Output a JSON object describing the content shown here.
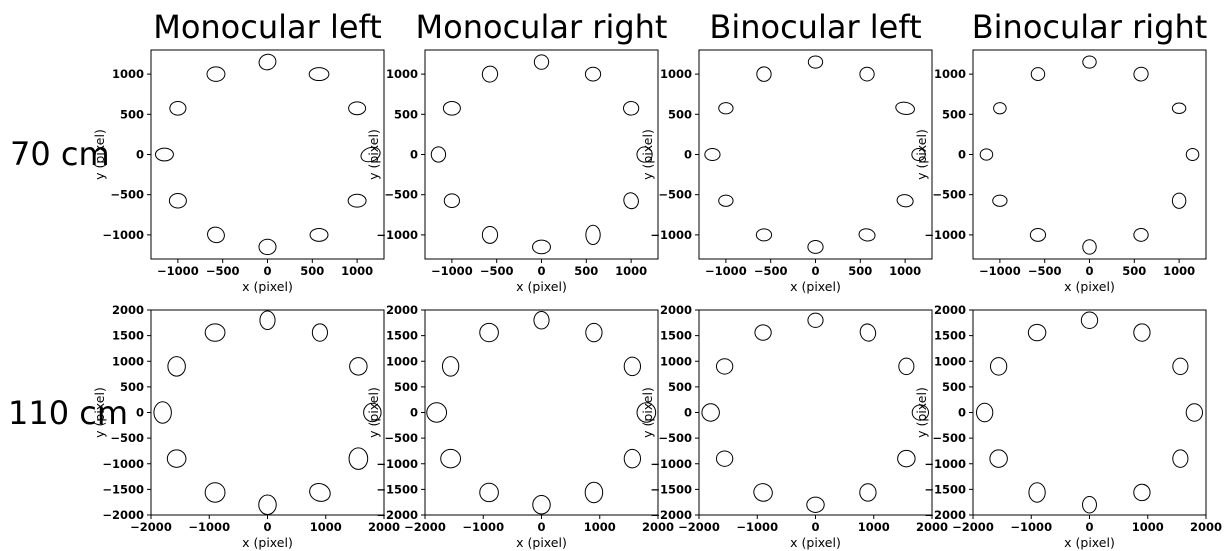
{
  "figure": {
    "column_titles": [
      "Monocular left",
      "Monocular right",
      "Binocular left",
      "Binocular right"
    ],
    "row_labels": [
      "70 cm",
      "110 cm"
    ]
  },
  "chart_data": [
    {
      "type": "scatter",
      "row": 0,
      "col": 0,
      "xlabel": "x (pixel)",
      "ylabel": "y (pixel)",
      "xlim": [
        -1300,
        1300
      ],
      "ylim": [
        -1300,
        1300
      ],
      "xticks": [
        -1000,
        -500,
        0,
        500,
        1000
      ],
      "yticks": [
        -1000,
        -500,
        0,
        500,
        1000
      ],
      "tick_labels_x": [
        "−1000",
        "−500",
        "0",
        "500",
        "1000"
      ],
      "tick_labels_y": [
        "−1000",
        "−500",
        "0",
        "500",
        "1000"
      ],
      "ellipses": [
        {
          "cx": 0,
          "cy": 1150,
          "rx": 95,
          "ry": 95,
          "angle": -20
        },
        {
          "cx": 575,
          "cy": 1000,
          "rx": 110,
          "ry": 80,
          "angle": 0
        },
        {
          "cx": 1000,
          "cy": 575,
          "rx": 95,
          "ry": 80,
          "angle": 0
        },
        {
          "cx": 1150,
          "cy": 0,
          "rx": 110,
          "ry": 85,
          "angle": -20
        },
        {
          "cx": 1000,
          "cy": -575,
          "rx": 100,
          "ry": 80,
          "angle": 0
        },
        {
          "cx": 575,
          "cy": -1000,
          "rx": 100,
          "ry": 80,
          "angle": 0
        },
        {
          "cx": 0,
          "cy": -1150,
          "rx": 95,
          "ry": 95,
          "angle": 0
        },
        {
          "cx": -575,
          "cy": -1000,
          "rx": 95,
          "ry": 95,
          "angle": 20
        },
        {
          "cx": -1000,
          "cy": -575,
          "rx": 95,
          "ry": 90,
          "angle": 0
        },
        {
          "cx": -1150,
          "cy": 0,
          "rx": 100,
          "ry": 80,
          "angle": 0
        },
        {
          "cx": -1000,
          "cy": 575,
          "rx": 90,
          "ry": 85,
          "angle": 0
        },
        {
          "cx": -575,
          "cy": 1000,
          "rx": 100,
          "ry": 90,
          "angle": 0
        }
      ]
    },
    {
      "type": "scatter",
      "row": 0,
      "col": 1,
      "xlabel": "x (pixel)",
      "ylabel": "y (pixel)",
      "xlim": [
        -1300,
        1300
      ],
      "ylim": [
        -1300,
        1300
      ],
      "xticks": [
        -1000,
        -500,
        0,
        500,
        1000
      ],
      "yticks": [
        -1000,
        -500,
        0,
        500,
        1000
      ],
      "tick_labels_x": [
        "−1000",
        "−500",
        "0",
        "500",
        "1000"
      ],
      "tick_labels_y": [
        "−1000",
        "−500",
        "0",
        "500",
        "1000"
      ],
      "ellipses": [
        {
          "cx": 0,
          "cy": 1150,
          "rx": 80,
          "ry": 90,
          "angle": 0
        },
        {
          "cx": 575,
          "cy": 1000,
          "rx": 85,
          "ry": 85,
          "angle": 0
        },
        {
          "cx": 1000,
          "cy": 575,
          "rx": 85,
          "ry": 85,
          "angle": 0
        },
        {
          "cx": 1150,
          "cy": 0,
          "rx": 85,
          "ry": 95,
          "angle": 0
        },
        {
          "cx": 1000,
          "cy": -575,
          "rx": 80,
          "ry": 100,
          "angle": -20
        },
        {
          "cx": 575,
          "cy": -1000,
          "rx": 80,
          "ry": 120,
          "angle": 0
        },
        {
          "cx": 0,
          "cy": -1150,
          "rx": 100,
          "ry": 85,
          "angle": 0
        },
        {
          "cx": -575,
          "cy": -1000,
          "rx": 85,
          "ry": 105,
          "angle": 0
        },
        {
          "cx": -1000,
          "cy": -575,
          "rx": 85,
          "ry": 85,
          "angle": 0
        },
        {
          "cx": -1150,
          "cy": 0,
          "rx": 80,
          "ry": 95,
          "angle": 0
        },
        {
          "cx": -1000,
          "cy": 575,
          "rx": 95,
          "ry": 85,
          "angle": 0
        },
        {
          "cx": -575,
          "cy": 1000,
          "rx": 85,
          "ry": 100,
          "angle": 10
        }
      ]
    },
    {
      "type": "scatter",
      "row": 0,
      "col": 2,
      "xlabel": "x (pixel)",
      "ylabel": "y (pixel)",
      "xlim": [
        -1300,
        1300
      ],
      "ylim": [
        -1300,
        1300
      ],
      "xticks": [
        -1000,
        -500,
        0,
        500,
        1000
      ],
      "yticks": [
        -1000,
        -500,
        0,
        500,
        1000
      ],
      "tick_labels_x": [
        "−1000",
        "−500",
        "0",
        "500",
        "1000"
      ],
      "tick_labels_y": [
        "−1000",
        "−500",
        "0",
        "500",
        "1000"
      ],
      "ellipses": [
        {
          "cx": 0,
          "cy": 1150,
          "rx": 80,
          "ry": 75,
          "angle": 0
        },
        {
          "cx": 575,
          "cy": 1000,
          "rx": 80,
          "ry": 85,
          "angle": 0
        },
        {
          "cx": 1000,
          "cy": 575,
          "rx": 105,
          "ry": 75,
          "angle": 10
        },
        {
          "cx": 1150,
          "cy": 0,
          "rx": 75,
          "ry": 75,
          "angle": 0
        },
        {
          "cx": 1000,
          "cy": -575,
          "rx": 90,
          "ry": 75,
          "angle": 10
        },
        {
          "cx": 575,
          "cy": -1000,
          "rx": 90,
          "ry": 75,
          "angle": 10
        },
        {
          "cx": 0,
          "cy": -1150,
          "rx": 85,
          "ry": 80,
          "angle": 0
        },
        {
          "cx": -575,
          "cy": -1000,
          "rx": 85,
          "ry": 75,
          "angle": 0
        },
        {
          "cx": -1000,
          "cy": -575,
          "rx": 80,
          "ry": 70,
          "angle": 0
        },
        {
          "cx": -1150,
          "cy": 0,
          "rx": 85,
          "ry": 75,
          "angle": 0
        },
        {
          "cx": -1000,
          "cy": 575,
          "rx": 80,
          "ry": 70,
          "angle": 0
        },
        {
          "cx": -575,
          "cy": 1000,
          "rx": 80,
          "ry": 90,
          "angle": 0
        }
      ]
    },
    {
      "type": "scatter",
      "row": 0,
      "col": 3,
      "xlabel": "x (pixel)",
      "ylabel": "y (pixel)",
      "xlim": [
        -1300,
        1300
      ],
      "ylim": [
        -1300,
        1300
      ],
      "xticks": [
        -1000,
        -500,
        0,
        500,
        1000
      ],
      "yticks": [
        -1000,
        -500,
        0,
        500,
        1000
      ],
      "tick_labels_x": [
        "−1000",
        "−500",
        "0",
        "500",
        "1000"
      ],
      "tick_labels_y": [
        "−1000",
        "−500",
        "0",
        "500",
        "1000"
      ],
      "ellipses": [
        {
          "cx": 0,
          "cy": 1150,
          "rx": 75,
          "ry": 75,
          "angle": 0
        },
        {
          "cx": 575,
          "cy": 1000,
          "rx": 80,
          "ry": 85,
          "angle": -20
        },
        {
          "cx": 1000,
          "cy": 575,
          "rx": 75,
          "ry": 65,
          "angle": 0
        },
        {
          "cx": 1150,
          "cy": 0,
          "rx": 70,
          "ry": 75,
          "angle": 0
        },
        {
          "cx": 1000,
          "cy": -575,
          "rx": 75,
          "ry": 95,
          "angle": 0
        },
        {
          "cx": 575,
          "cy": -1000,
          "rx": 80,
          "ry": 80,
          "angle": 0
        },
        {
          "cx": 0,
          "cy": -1150,
          "rx": 75,
          "ry": 90,
          "angle": 0
        },
        {
          "cx": -575,
          "cy": -1000,
          "rx": 85,
          "ry": 80,
          "angle": 0
        },
        {
          "cx": -1000,
          "cy": -575,
          "rx": 80,
          "ry": 70,
          "angle": 0
        },
        {
          "cx": -1150,
          "cy": 0,
          "rx": 70,
          "ry": 70,
          "angle": 0
        },
        {
          "cx": -1000,
          "cy": 575,
          "rx": 70,
          "ry": 70,
          "angle": 0
        },
        {
          "cx": -575,
          "cy": 1000,
          "rx": 75,
          "ry": 80,
          "angle": 0
        }
      ]
    },
    {
      "type": "scatter",
      "row": 1,
      "col": 0,
      "xlabel": "x (pixel)",
      "ylabel": "y (pixel)",
      "xlim": [
        -2000,
        2000
      ],
      "ylim": [
        -2000,
        2000
      ],
      "xticks": [
        -2000,
        -1000,
        0,
        1000,
        2000
      ],
      "yticks": [
        -2000,
        -1500,
        -1000,
        -500,
        0,
        500,
        1000,
        1500,
        2000
      ],
      "tick_labels_x": [
        "−2000",
        "−1000",
        "0",
        "1000",
        "2000"
      ],
      "tick_labels_y": [
        "−2000",
        "−1500",
        "−1000",
        "−500",
        "0",
        "500",
        "1000",
        "1500",
        "2000"
      ],
      "ellipses": [
        {
          "cx": 0,
          "cy": 1800,
          "rx": 130,
          "ry": 180,
          "angle": 0
        },
        {
          "cx": 900,
          "cy": 1560,
          "rx": 130,
          "ry": 170,
          "angle": 0
        },
        {
          "cx": 1560,
          "cy": 900,
          "rx": 150,
          "ry": 170,
          "angle": 0
        },
        {
          "cx": 1800,
          "cy": 0,
          "rx": 150,
          "ry": 180,
          "angle": 0
        },
        {
          "cx": 1560,
          "cy": -900,
          "rx": 160,
          "ry": 210,
          "angle": 0
        },
        {
          "cx": 900,
          "cy": -1560,
          "rx": 180,
          "ry": 170,
          "angle": 20
        },
        {
          "cx": 0,
          "cy": -1800,
          "rx": 150,
          "ry": 190,
          "angle": 0
        },
        {
          "cx": -900,
          "cy": -1560,
          "rx": 170,
          "ry": 190,
          "angle": 0
        },
        {
          "cx": -1560,
          "cy": -900,
          "rx": 160,
          "ry": 170,
          "angle": 0
        },
        {
          "cx": -1800,
          "cy": 0,
          "rx": 150,
          "ry": 210,
          "angle": 0
        },
        {
          "cx": -1560,
          "cy": 900,
          "rx": 150,
          "ry": 190,
          "angle": 0
        },
        {
          "cx": -900,
          "cy": 1560,
          "rx": 170,
          "ry": 170,
          "angle": 0
        }
      ]
    },
    {
      "type": "scatter",
      "row": 1,
      "col": 1,
      "xlabel": "x (pixel)",
      "ylabel": "y (pixel)",
      "xlim": [
        -2000,
        2000
      ],
      "ylim": [
        -2000,
        2000
      ],
      "xticks": [
        -2000,
        -1000,
        0,
        1000,
        2000
      ],
      "yticks": [
        -2000,
        -1500,
        -1000,
        -500,
        0,
        500,
        1000,
        1500,
        2000
      ],
      "tick_labels_x": [
        "−2000",
        "−1000",
        "0",
        "1000",
        "2000"
      ],
      "tick_labels_y": [
        "−2000",
        "−1500",
        "−1000",
        "−500",
        "0",
        "500",
        "1000",
        "1500",
        "2000"
      ],
      "ellipses": [
        {
          "cx": 0,
          "cy": 1800,
          "rx": 130,
          "ry": 170,
          "angle": 0
        },
        {
          "cx": 900,
          "cy": 1560,
          "rx": 140,
          "ry": 180,
          "angle": 0
        },
        {
          "cx": 1560,
          "cy": 900,
          "rx": 140,
          "ry": 180,
          "angle": 0
        },
        {
          "cx": 1800,
          "cy": 0,
          "rx": 160,
          "ry": 190,
          "angle": 0
        },
        {
          "cx": 1560,
          "cy": -900,
          "rx": 140,
          "ry": 180,
          "angle": 0
        },
        {
          "cx": 900,
          "cy": -1560,
          "rx": 150,
          "ry": 200,
          "angle": 0
        },
        {
          "cx": 0,
          "cy": -1800,
          "rx": 150,
          "ry": 180,
          "angle": 0
        },
        {
          "cx": -900,
          "cy": -1560,
          "rx": 160,
          "ry": 180,
          "angle": 0
        },
        {
          "cx": -1560,
          "cy": -900,
          "rx": 170,
          "ry": 180,
          "angle": 0
        },
        {
          "cx": -1800,
          "cy": 0,
          "rx": 170,
          "ry": 190,
          "angle": 0
        },
        {
          "cx": -1560,
          "cy": 900,
          "rx": 140,
          "ry": 190,
          "angle": 0
        },
        {
          "cx": -900,
          "cy": 1560,
          "rx": 160,
          "ry": 180,
          "angle": 0
        }
      ]
    },
    {
      "type": "scatter",
      "row": 1,
      "col": 2,
      "xlabel": "x (pixel)",
      "ylabel": "y (pixel)",
      "xlim": [
        -2000,
        2000
      ],
      "ylim": [
        -2000,
        2000
      ],
      "xticks": [
        -2000,
        -1000,
        0,
        1000,
        2000
      ],
      "yticks": [
        -2000,
        -1500,
        -1000,
        -500,
        0,
        500,
        1000,
        1500,
        2000
      ],
      "tick_labels_x": [
        "−2000",
        "−1000",
        "0",
        "1000",
        "2000"
      ],
      "tick_labels_y": [
        "−2000",
        "−1500",
        "−1000",
        "−500",
        "0",
        "500",
        "1000",
        "1500",
        "2000"
      ],
      "ellipses": [
        {
          "cx": 0,
          "cy": 1800,
          "rx": 130,
          "ry": 140,
          "angle": 0
        },
        {
          "cx": 900,
          "cy": 1560,
          "rx": 130,
          "ry": 170,
          "angle": -20
        },
        {
          "cx": 1560,
          "cy": 900,
          "rx": 130,
          "ry": 160,
          "angle": 0
        },
        {
          "cx": 1800,
          "cy": 0,
          "rx": 140,
          "ry": 150,
          "angle": 0
        },
        {
          "cx": 1560,
          "cy": -900,
          "rx": 150,
          "ry": 160,
          "angle": 0
        },
        {
          "cx": 900,
          "cy": -1560,
          "rx": 140,
          "ry": 170,
          "angle": 0
        },
        {
          "cx": 0,
          "cy": -1800,
          "rx": 150,
          "ry": 150,
          "angle": 0
        },
        {
          "cx": -900,
          "cy": -1560,
          "rx": 160,
          "ry": 170,
          "angle": 20
        },
        {
          "cx": -1560,
          "cy": -900,
          "rx": 140,
          "ry": 150,
          "angle": 0
        },
        {
          "cx": -1800,
          "cy": 0,
          "rx": 150,
          "ry": 170,
          "angle": 0
        },
        {
          "cx": -1560,
          "cy": 900,
          "rx": 140,
          "ry": 150,
          "angle": 0
        },
        {
          "cx": -900,
          "cy": 1560,
          "rx": 140,
          "ry": 150,
          "angle": 0
        }
      ]
    },
    {
      "type": "scatter",
      "row": 1,
      "col": 3,
      "xlabel": "x (pixel)",
      "ylabel": "y (pixel)",
      "xlim": [
        -2000,
        2000
      ],
      "ylim": [
        -2000,
        2000
      ],
      "xticks": [
        -2000,
        -1000,
        0,
        1000,
        2000
      ],
      "yticks": [
        -2000,
        -1500,
        -1000,
        -500,
        0,
        500,
        1000,
        1500,
        2000
      ],
      "tick_labels_x": [
        "−2000",
        "−1000",
        "0",
        "1000",
        "2000"
      ],
      "tick_labels_y": [
        "−2000",
        "−1500",
        "−1000",
        "−500",
        "0",
        "500",
        "1000",
        "1500",
        "2000"
      ],
      "ellipses": [
        {
          "cx": 0,
          "cy": 1800,
          "rx": 140,
          "ry": 160,
          "angle": 0
        },
        {
          "cx": 900,
          "cy": 1560,
          "rx": 140,
          "ry": 170,
          "angle": 0
        },
        {
          "cx": 1560,
          "cy": 900,
          "rx": 130,
          "ry": 160,
          "angle": 0
        },
        {
          "cx": 1800,
          "cy": 0,
          "rx": 140,
          "ry": 170,
          "angle": 0
        },
        {
          "cx": 1560,
          "cy": -900,
          "rx": 130,
          "ry": 170,
          "angle": 0
        },
        {
          "cx": 900,
          "cy": -1560,
          "rx": 140,
          "ry": 160,
          "angle": 0
        },
        {
          "cx": 0,
          "cy": -1800,
          "rx": 120,
          "ry": 160,
          "angle": 0
        },
        {
          "cx": -900,
          "cy": -1560,
          "rx": 140,
          "ry": 190,
          "angle": 0
        },
        {
          "cx": -1560,
          "cy": -900,
          "rx": 150,
          "ry": 170,
          "angle": 0
        },
        {
          "cx": -1800,
          "cy": 0,
          "rx": 140,
          "ry": 180,
          "angle": 0
        },
        {
          "cx": -1560,
          "cy": 900,
          "rx": 140,
          "ry": 170,
          "angle": 0
        },
        {
          "cx": -900,
          "cy": 1560,
          "rx": 150,
          "ry": 160,
          "angle": 0
        }
      ]
    }
  ]
}
